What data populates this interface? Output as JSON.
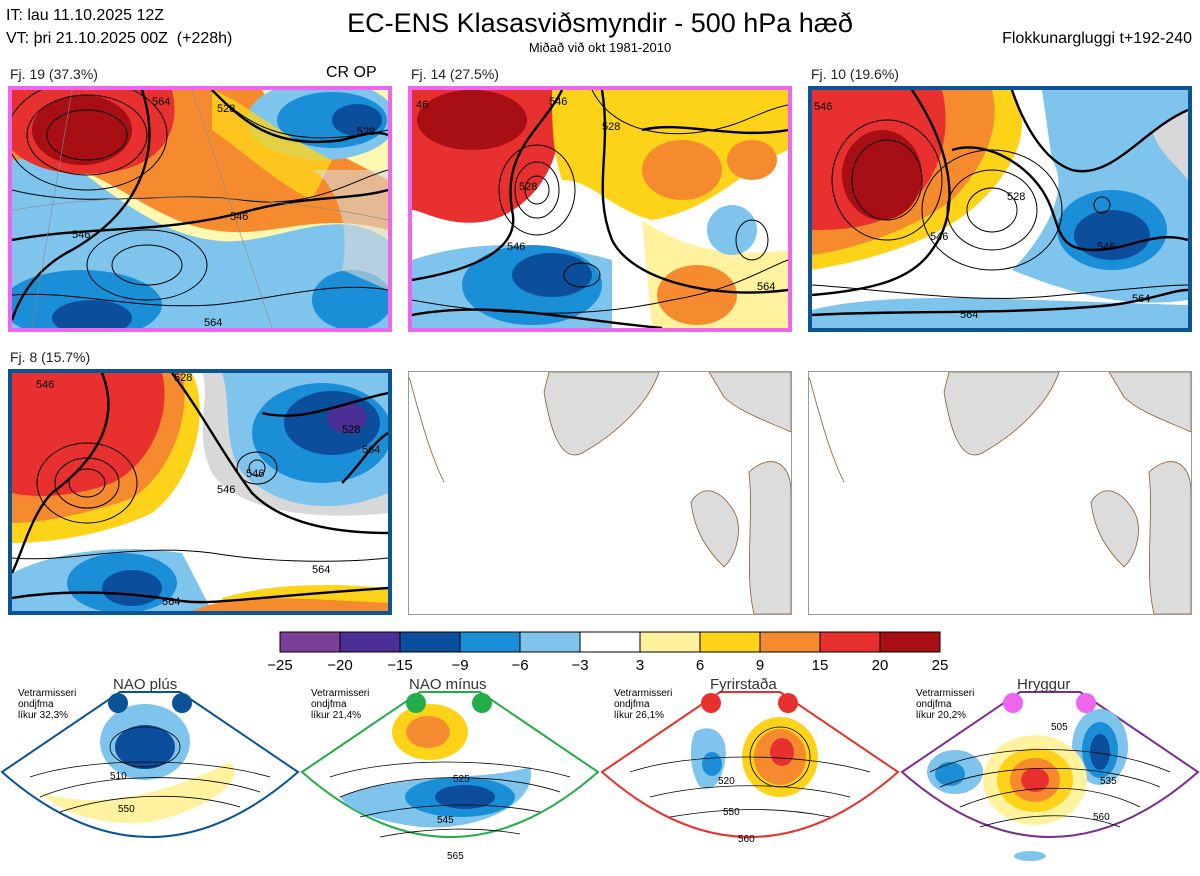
{
  "header": {
    "it_line": "IT: lau 11.10.2025 12Z",
    "vt_line": "VT: þri 21.10.2025 00Z  (+228h)",
    "title": "EC-ENS Klasasviðsmyndir - 500 hPa hæð",
    "subtitle": "Miðað við okt 1981-2010",
    "window": "Flokkunargluggi t+192-240"
  },
  "panels": [
    {
      "label": "Fj. 19 (37.3%)",
      "tag": "CR OP",
      "frame_color": "#ee66ee"
    },
    {
      "label": "Fj. 14 (27.5%)",
      "tag": "",
      "frame_color": "#ee66ee"
    },
    {
      "label": "Fj. 10 (19.6%)",
      "tag": "",
      "frame_color": "#0b5394"
    },
    {
      "label": "Fj. 8 (15.7%)",
      "tag": "",
      "frame_color": "#0b5394"
    }
  ],
  "contour_labels": {
    "p1": [
      "564",
      "528",
      "528",
      "546",
      "546",
      "564"
    ],
    "p2": [
      "46",
      "546",
      "528",
      "546",
      "528",
      "564"
    ],
    "p3": [
      "546",
      "528",
      "546",
      "546",
      "564",
      "564"
    ],
    "p4": [
      "546",
      "528",
      "528",
      "546",
      "546",
      "564",
      "564",
      "564"
    ]
  },
  "colorbar": {
    "ticks": [
      "−25",
      "−20",
      "−15",
      "−9",
      "−6",
      "−3",
      "3",
      "6",
      "9",
      "15",
      "20",
      "25"
    ],
    "colors": [
      "#7b3f97",
      "#4b2f94",
      "#0b4f9c",
      "#1a8fd8",
      "#7fc4ec",
      "#ffffff",
      "#fff29e",
      "#fdd31a",
      "#f58b2e",
      "#e8312f",
      "#a70f14"
    ]
  },
  "regimes": [
    {
      "name": "NAO plús",
      "note": "Vetrarmisseri\nondjfma\nlíkur 32,3%",
      "dot_color": "#0b5394",
      "frame_color": "#0b5394",
      "labels": [
        "510",
        "550"
      ]
    },
    {
      "name": "NAO mínus",
      "note": "Vetrarmisseri\nondjfma\nlíkur 21,4%",
      "dot_color": "#23ad4a",
      "frame_color": "#23ad4a",
      "labels": [
        "525",
        "545",
        "565"
      ]
    },
    {
      "name": "Fyrirstaða",
      "note": "Vetrarmisseri\nondjfma\nlíkur 26,1%",
      "dot_color": "#e8312f",
      "frame_color": "#e8312f",
      "labels": [
        "520",
        "550",
        "560"
      ]
    },
    {
      "name": "Hryggur",
      "note": "Vetrarmisseri\nondjfma\nlíkur 20,2%",
      "dot_color": "#ee66ee",
      "frame_color": "#7b2d8e",
      "labels": [
        "505",
        "535",
        "560"
      ]
    }
  ]
}
